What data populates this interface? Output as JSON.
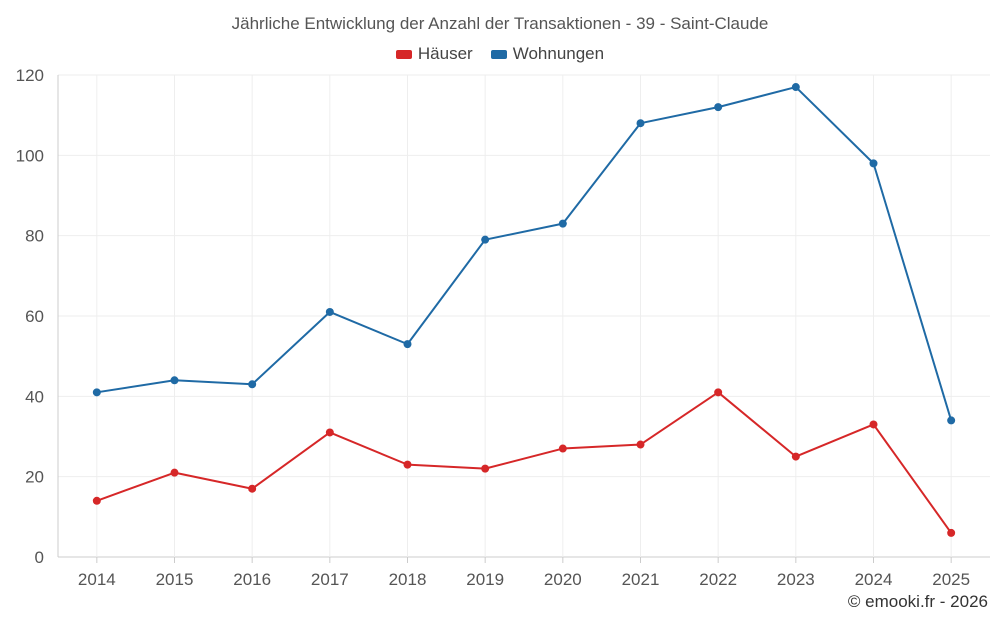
{
  "chart_data": {
    "type": "line",
    "title": "Jährliche Entwicklung der Anzahl der Transaktionen - 39 - Saint-Claude",
    "categories": [
      "2014",
      "2015",
      "2016",
      "2017",
      "2018",
      "2019",
      "2020",
      "2021",
      "2022",
      "2023",
      "2024",
      "2025"
    ],
    "series": [
      {
        "name": "Häuser",
        "color": "#d62728",
        "values": [
          14,
          21,
          17,
          31,
          23,
          22,
          27,
          28,
          41,
          25,
          33,
          6
        ]
      },
      {
        "name": "Wohnungen",
        "color": "#1f6aa5",
        "values": [
          41,
          44,
          43,
          61,
          53,
          79,
          83,
          108,
          112,
          117,
          98,
          34
        ]
      }
    ],
    "yticks": [
      "0",
      "20",
      "40",
      "60",
      "80",
      "100",
      "120"
    ],
    "ylim": [
      0,
      120
    ],
    "xlabel": "",
    "ylabel": "",
    "legend_position": "top-center",
    "grid": true
  },
  "credit": "© emooki.fr - 2026"
}
